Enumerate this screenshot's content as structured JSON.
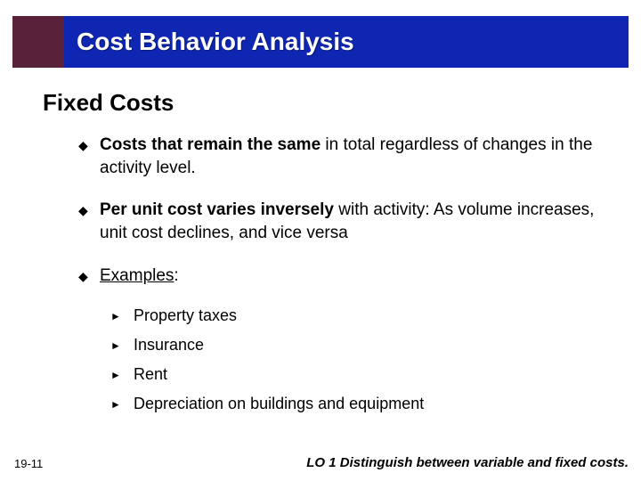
{
  "title": "Cost Behavior Analysis",
  "section_heading": "Fixed Costs",
  "bullets": [
    {
      "html": "<b>Costs that remain the same</b> in total regardless of changes in the activity level."
    },
    {
      "html": "<b>Per unit cost varies inversely</b> with activity:  As volume increases, unit cost declines, and vice versa"
    },
    {
      "html": "<u>Examples</u>:",
      "sub": [
        "Property taxes",
        "Insurance",
        "Rent",
        "Depreciation on buildings and equipment"
      ]
    }
  ],
  "page_number": "19-11",
  "footer_lo": "LO 1  Distinguish between variable and fixed costs.",
  "colors": {
    "title_bar_bg": "#0f26b3",
    "title_box_bg": "#5a213b",
    "title_text": "#ffffff",
    "body_text": "#000000",
    "background": "#ffffff"
  },
  "markers": {
    "bullet_glyph": "◆",
    "sub_bullet_glyph": "►"
  }
}
